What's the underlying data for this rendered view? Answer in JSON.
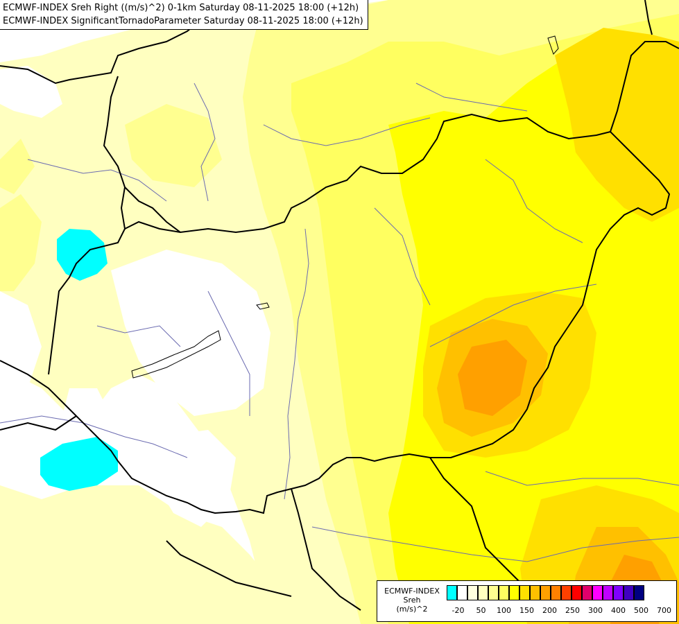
{
  "header": {
    "line1": "ECMWF-INDEX Sreh Right ((m/s)^2) 0-1km Saturday 08-11-2025 18:00 (+12h)",
    "line2": "ECMWF-INDEX SignificantTornadoParameter Saturday 08-11-2025 18:00 (+12h)"
  },
  "legend": {
    "title_line1": "ECMWF-INDEX",
    "title_line2": "Sreh",
    "title_line3": "(m/s)^2",
    "colors": [
      "#00ffff",
      "#ffffff",
      "#ffffe0",
      "#ffffc0",
      "#ffff90",
      "#ffff60",
      "#ffff00",
      "#ffe000",
      "#ffc000",
      "#ffa000",
      "#ff8000",
      "#ff4000",
      "#ff0000",
      "#e0006a",
      "#ff00ff",
      "#c000ff",
      "#8000ff",
      "#4000c0",
      "#000080"
    ],
    "ticks": [
      "-20",
      "50",
      "100",
      "150",
      "200",
      "250",
      "300",
      "400",
      "500",
      "700"
    ]
  },
  "map": {
    "colors": {
      "background": "#ffffff",
      "pale_yellow": "#ffffc0",
      "light_yellow": "#ffff90",
      "yellow": "#ffff60",
      "bright_yellow": "#ffff00",
      "gold": "#ffe000",
      "amber": "#ffc000",
      "orange": "#ffa000",
      "cyan": "#00ffff",
      "border": "#000000",
      "river": "#6a6ab0"
    }
  }
}
